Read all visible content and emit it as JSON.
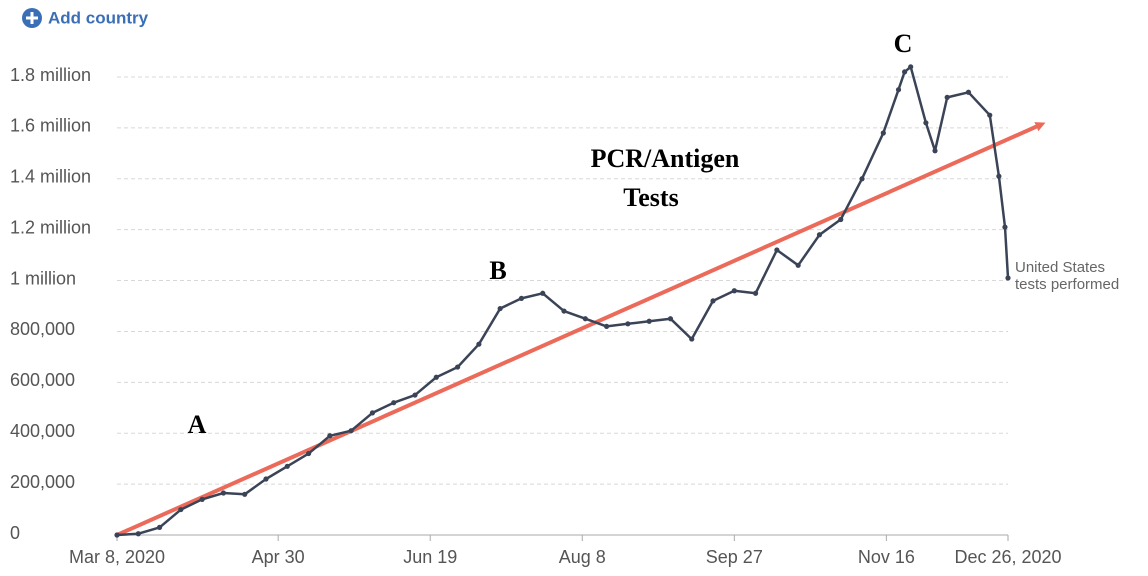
{
  "add_country": "Add country",
  "chart_data": {
    "type": "line",
    "annotations": [
      "A",
      "B",
      "C",
      "PCR/Antigen",
      "Tests"
    ],
    "x": [
      "2020-03-08",
      "2020-03-15",
      "2020-03-22",
      "2020-03-29",
      "2020-04-05",
      "2020-04-12",
      "2020-04-19",
      "2020-04-26",
      "2020-05-03",
      "2020-05-10",
      "2020-05-17",
      "2020-05-24",
      "2020-05-31",
      "2020-06-07",
      "2020-06-14",
      "2020-06-21",
      "2020-06-28",
      "2020-07-05",
      "2020-07-12",
      "2020-07-19",
      "2020-07-26",
      "2020-08-02",
      "2020-08-09",
      "2020-08-16",
      "2020-08-23",
      "2020-08-30",
      "2020-09-06",
      "2020-09-13",
      "2020-09-20",
      "2020-09-27",
      "2020-10-04",
      "2020-10-11",
      "2020-10-18",
      "2020-10-25",
      "2020-11-01",
      "2020-11-08",
      "2020-11-15",
      "2020-11-20",
      "2020-11-22",
      "2020-11-24",
      "2020-11-29",
      "2020-12-02",
      "2020-12-06",
      "2020-12-13",
      "2020-12-20",
      "2020-12-23",
      "2020-12-25",
      "2020-12-26"
    ],
    "series": [
      {
        "name": [
          "United States",
          "tests performed"
        ],
        "color": "#3b4457",
        "values": [
          0,
          5000,
          30000,
          100000,
          140000,
          165000,
          160000,
          220000,
          270000,
          320000,
          390000,
          410000,
          480000,
          520000,
          550000,
          620000,
          660000,
          750000,
          890000,
          930000,
          950000,
          880000,
          850000,
          820000,
          830000,
          840000,
          850000,
          770000,
          920000,
          960000,
          950000,
          1120000,
          1060000,
          1180000,
          1240000,
          1400000,
          1580000,
          1750000,
          1820000,
          1840000,
          1620000,
          1510000,
          1720000,
          1740000,
          1650000,
          1410000,
          1210000,
          1010000
        ]
      }
    ],
    "xlim": [
      "2020-03-08",
      "2020-12-26"
    ],
    "xticks": [
      {
        "value": "2020-03-08",
        "label": "Mar 8, 2020"
      },
      {
        "value": "2020-04-30",
        "label": "Apr 30"
      },
      {
        "value": "2020-06-19",
        "label": "Jun 19"
      },
      {
        "value": "2020-08-08",
        "label": "Aug 8"
      },
      {
        "value": "2020-09-27",
        "label": "Sep 27"
      },
      {
        "value": "2020-11-16",
        "label": "Nov 16"
      },
      {
        "value": "2020-12-26",
        "label": "Dec 26, 2020"
      }
    ],
    "ylim": [
      0,
      1800000
    ],
    "yticks": [
      0,
      {
        "value": 200000,
        "label": "200,000"
      },
      {
        "value": 400000,
        "label": "400,000"
      },
      {
        "value": 600000,
        "label": "600,000"
      },
      {
        "value": 800000,
        "label": "800,000"
      },
      {
        "value": 1000000,
        "label": "1 million"
      },
      {
        "value": 1200000,
        "label": "1.2 million"
      },
      {
        "value": 1400000,
        "label": "1.4 million"
      },
      {
        "value": 1600000,
        "label": "1.6 million"
      },
      {
        "value": 1800000,
        "label": "1.8 million"
      }
    ],
    "grid": true
  }
}
